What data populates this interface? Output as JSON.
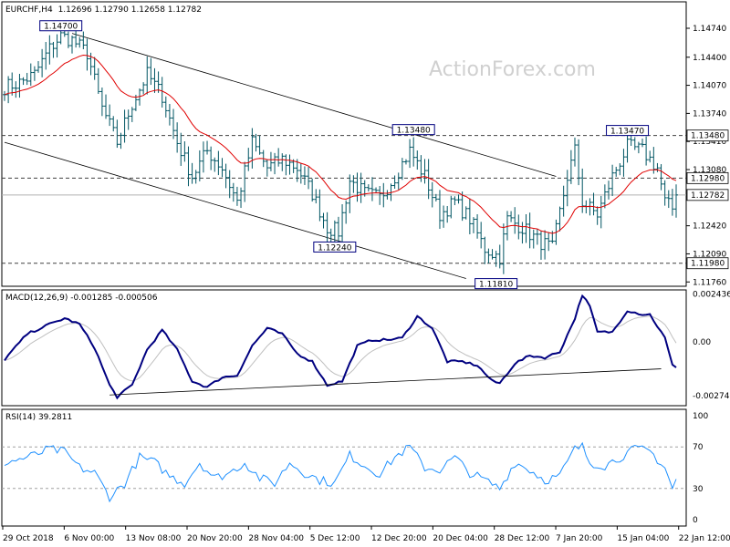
{
  "chart_data": {
    "type": "candlestick",
    "symbol": "EURCHF",
    "timeframe": "H4",
    "ohlc_header": "1.12696 1.12790 1.12658 1.12782",
    "watermark": "ActionForex.com",
    "x_labels": [
      "29 Oct 2018",
      "6 Nov 00:00",
      "13 Nov 08:00",
      "20 Nov 20:00",
      "28 Nov 04:00",
      "5 Dec 12:00",
      "12 Dec 20:00",
      "20 Dec 04:00",
      "28 Dec 12:00",
      "7 Jan 20:00",
      "15 Jan 04:00",
      "22 Jan 12:00"
    ],
    "price": {
      "ylim": [
        1.1172,
        1.1504
      ],
      "y_ticks": [
        "1.14740",
        "1.14400",
        "1.14070",
        "1.13740",
        "1.13410",
        "1.13080",
        "1.12420",
        "1.12090",
        "1.11760"
      ],
      "price_tags": [
        {
          "value": 1.1348,
          "label": "1.13480",
          "style": "dashed",
          "tag_color": "#ffffff"
        },
        {
          "value": 1.1298,
          "label": "1.12980",
          "style": "dashed",
          "tag_color": "#ffffff"
        },
        {
          "value": 1.12782,
          "label": "1.12782",
          "style": "solid",
          "tag_color": "#ffffff"
        },
        {
          "value": 1.1198,
          "label": "1.11980",
          "style": "dashed",
          "tag_color": "#ffffff"
        }
      ],
      "annotations": [
        {
          "label": "1.14700",
          "bar": 15,
          "value": 1.147,
          "pos": "above"
        },
        {
          "label": "1.13480",
          "bar": 109,
          "value": 1.1348,
          "pos": "above"
        },
        {
          "label": "1.12240",
          "bar": 88,
          "value": 1.1224,
          "pos": "below"
        },
        {
          "label": "1.11810",
          "bar": 131,
          "value": 1.1181,
          "pos": "below"
        },
        {
          "label": "1.13470",
          "bar": 166,
          "value": 1.1347,
          "pos": "above"
        }
      ],
      "ma_color": "#e00000",
      "bar_color": "#005563",
      "close_anchors": [
        [
          0,
          1.1405
        ],
        [
          4,
          1.141
        ],
        [
          8,
          1.142
        ],
        [
          12,
          1.145
        ],
        [
          15,
          1.1465
        ],
        [
          18,
          1.146
        ],
        [
          22,
          1.1445
        ],
        [
          26,
          1.138
        ],
        [
          30,
          1.134
        ],
        [
          34,
          1.1385
        ],
        [
          38,
          1.142
        ],
        [
          42,
          1.1395
        ],
        [
          46,
          1.134
        ],
        [
          50,
          1.13
        ],
        [
          54,
          1.133
        ],
        [
          58,
          1.131
        ],
        [
          62,
          1.127
        ],
        [
          66,
          1.134
        ],
        [
          70,
          1.131
        ],
        [
          74,
          1.132
        ],
        [
          78,
          1.131
        ],
        [
          82,
          1.128
        ],
        [
          86,
          1.124
        ],
        [
          89,
          1.1235
        ],
        [
          92,
          1.1295
        ],
        [
          96,
          1.128
        ],
        [
          100,
          1.1275
        ],
        [
          104,
          1.13
        ],
        [
          108,
          1.133
        ],
        [
          112,
          1.13
        ],
        [
          116,
          1.1255
        ],
        [
          120,
          1.127
        ],
        [
          124,
          1.125
        ],
        [
          128,
          1.1215
        ],
        [
          132,
          1.1205
        ],
        [
          134,
          1.125
        ],
        [
          138,
          1.124
        ],
        [
          142,
          1.1225
        ],
        [
          146,
          1.1215
        ],
        [
          150,
          1.13
        ],
        [
          152,
          1.133
        ],
        [
          154,
          1.127
        ],
        [
          158,
          1.1255
        ],
        [
          162,
          1.13
        ],
        [
          166,
          1.1335
        ],
        [
          170,
          1.133
        ],
        [
          174,
          1.131
        ],
        [
          176,
          1.127
        ],
        [
          178,
          1.1262
        ],
        [
          179,
          1.12782
        ]
      ],
      "channel_upper": [
        [
          1.1468,
          18
        ],
        [
          1.13,
          147
        ]
      ],
      "channel_lower": [
        [
          1.134,
          0
        ],
        [
          1.118,
          123
        ]
      ]
    },
    "macd": {
      "title": "MACD(12,26,9) -0.001285 -0.000506",
      "ylim": [
        -0.0032,
        0.0026
      ],
      "y_ticks": [
        "0.002436",
        "0.00",
        "-0.002742"
      ],
      "main_color": "#000080",
      "signal_color": "#c0c0c0",
      "anchors": [
        [
          0,
          -0.0009
        ],
        [
          6,
          0.0004
        ],
        [
          12,
          0.0009
        ],
        [
          16,
          0.0012
        ],
        [
          20,
          0.0009
        ],
        [
          24,
          -0.0003
        ],
        [
          28,
          -0.0022
        ],
        [
          30,
          -0.0028
        ],
        [
          34,
          -0.0022
        ],
        [
          38,
          -0.0004
        ],
        [
          42,
          0.0006
        ],
        [
          46,
          -0.0004
        ],
        [
          50,
          -0.002
        ],
        [
          54,
          -0.0023
        ],
        [
          58,
          -0.0018
        ],
        [
          62,
          -0.0017
        ],
        [
          66,
          -0.0002
        ],
        [
          70,
          0.0007
        ],
        [
          74,
          0.0004
        ],
        [
          78,
          -0.0006
        ],
        [
          82,
          -0.001
        ],
        [
          86,
          -0.0022
        ],
        [
          90,
          -0.002
        ],
        [
          94,
          -0.0002
        ],
        [
          98,
          0.0001
        ],
        [
          102,
          0.0001
        ],
        [
          106,
          0.0002
        ],
        [
          110,
          0.0013
        ],
        [
          114,
          0.0007
        ],
        [
          118,
          -0.001
        ],
        [
          122,
          -0.001
        ],
        [
          126,
          -0.0012
        ],
        [
          130,
          -0.002
        ],
        [
          132,
          -0.0021
        ],
        [
          136,
          -0.0011
        ],
        [
          140,
          -0.0007
        ],
        [
          144,
          -0.0008
        ],
        [
          148,
          -0.0005
        ],
        [
          152,
          0.0012
        ],
        [
          154,
          0.0024
        ],
        [
          156,
          0.0018
        ],
        [
          158,
          0.0005
        ],
        [
          162,
          0.0005
        ],
        [
          166,
          0.0016
        ],
        [
          170,
          0.0014
        ],
        [
          172,
          0.0014
        ],
        [
          176,
          0.0002
        ],
        [
          178,
          -0.0012
        ],
        [
          179,
          -0.0013
        ]
      ],
      "trendline": [
        [
          28,
          -0.0027
        ],
        [
          175,
          -0.00137
        ]
      ]
    },
    "rsi": {
      "title": "RSI(14) 39.2811",
      "ylim": [
        0,
        100
      ],
      "y_ticks": [
        100,
        70,
        30,
        0
      ],
      "line_color": "#1e90ff",
      "anchors": [
        [
          0,
          55
        ],
        [
          4,
          58
        ],
        [
          8,
          62
        ],
        [
          12,
          68
        ],
        [
          16,
          65
        ],
        [
          20,
          50
        ],
        [
          24,
          45
        ],
        [
          28,
          22
        ],
        [
          32,
          35
        ],
        [
          36,
          60
        ],
        [
          40,
          55
        ],
        [
          44,
          42
        ],
        [
          48,
          35
        ],
        [
          52,
          55
        ],
        [
          56,
          40
        ],
        [
          60,
          45
        ],
        [
          64,
          55
        ],
        [
          68,
          40
        ],
        [
          72,
          35
        ],
        [
          76,
          55
        ],
        [
          80,
          45
        ],
        [
          84,
          38
        ],
        [
          88,
          35
        ],
        [
          92,
          62
        ],
        [
          96,
          52
        ],
        [
          100,
          44
        ],
        [
          104,
          60
        ],
        [
          108,
          70
        ],
        [
          112,
          50
        ],
        [
          116,
          48
        ],
        [
          120,
          60
        ],
        [
          124,
          45
        ],
        [
          128,
          38
        ],
        [
          132,
          30
        ],
        [
          136,
          55
        ],
        [
          140,
          48
        ],
        [
          144,
          38
        ],
        [
          148,
          42
        ],
        [
          152,
          68
        ],
        [
          154,
          70
        ],
        [
          156,
          55
        ],
        [
          160,
          52
        ],
        [
          164,
          60
        ],
        [
          168,
          68
        ],
        [
          172,
          66
        ],
        [
          176,
          50
        ],
        [
          178,
          30
        ],
        [
          179,
          39
        ]
      ]
    }
  }
}
